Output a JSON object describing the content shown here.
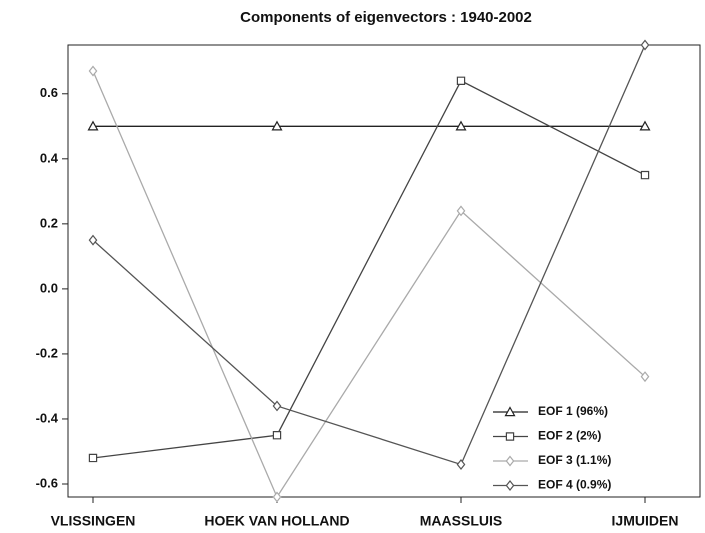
{
  "chart_data": {
    "type": "line",
    "title": "Components of eigenvectors : 1940-2002",
    "categories": [
      "VLISSINGEN",
      "HOEK VAN HOLLAND",
      "MAASSLUIS",
      "IJMUIDEN"
    ],
    "series": [
      {
        "name": "EOF 1 (96%)",
        "color": "#222222",
        "marker": "triangle",
        "values": [
          0.5,
          0.5,
          0.5,
          0.5
        ]
      },
      {
        "name": "EOF 2 (2%)",
        "color": "#444444",
        "marker": "square",
        "values": [
          -0.52,
          -0.45,
          0.64,
          0.35
        ]
      },
      {
        "name": "EOF 3 (1.1%)",
        "color": "#aaaaaa",
        "marker": "diamond",
        "values": [
          0.67,
          -0.64,
          0.24,
          -0.27
        ]
      },
      {
        "name": "EOF 4 (0.9%)",
        "color": "#555555",
        "marker": "diamond",
        "values": [
          0.15,
          -0.36,
          -0.54,
          0.75
        ]
      }
    ],
    "ylim": [
      -0.64,
      0.75
    ],
    "yticks": [
      -0.6,
      -0.4,
      -0.2,
      {
        "value": 0,
        "label": "0.0"
      },
      0.2,
      0.4,
      0.6
    ],
    "legend": "lower right"
  }
}
